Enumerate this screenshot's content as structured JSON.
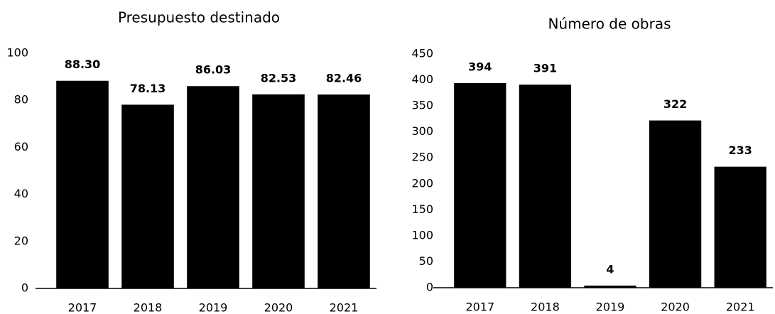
{
  "chart_data": [
    {
      "type": "bar",
      "title": "Presupuesto destinado",
      "categories": [
        "2017",
        "2018",
        "2019",
        "2020",
        "2021"
      ],
      "values": [
        88.3,
        78.13,
        86.03,
        82.53,
        82.46
      ],
      "value_labels": [
        "88.30",
        "78.13",
        "86.03",
        "82.53",
        "82.46"
      ],
      "color": "#000000",
      "ylim": [
        0,
        100
      ],
      "yticks": [
        0,
        20,
        40,
        60,
        80,
        100
      ],
      "grid": false
    },
    {
      "type": "bar",
      "title": "Número de obras",
      "categories": [
        "2017",
        "2018",
        "2019",
        "2020",
        "2021"
      ],
      "values": [
        394,
        391,
        4,
        322,
        233
      ],
      "color": "#000000",
      "ylim": [
        0,
        450
      ],
      "yticks": [
        0,
        50,
        100,
        150,
        200,
        250,
        300,
        350,
        400,
        450
      ],
      "grid": false
    }
  ]
}
